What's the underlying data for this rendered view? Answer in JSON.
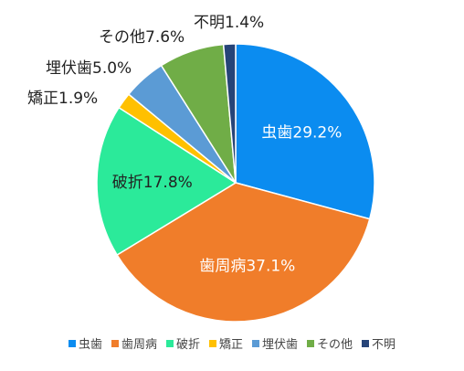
{
  "chart_data": {
    "type": "pie",
    "title": "",
    "start_angle_deg": 0,
    "direction": "clockwise",
    "legend_position": "bottom",
    "slices": [
      {
        "name": "虫歯",
        "value": 29.2,
        "label": "虫歯29.2%",
        "color": "#0B8CF0",
        "label_inside": true
      },
      {
        "name": "歯周病",
        "value": 37.1,
        "label": "歯周病37.1%",
        "color": "#F07D2A",
        "label_inside": true
      },
      {
        "name": "破折",
        "value": 17.8,
        "label": "破折17.8%",
        "color": "#2BEA9A",
        "label_inside": true
      },
      {
        "name": "矯正",
        "value": 1.9,
        "label": "矯正1.9%",
        "color": "#FFC000",
        "label_inside": false
      },
      {
        "name": "埋伏歯",
        "value": 5.0,
        "label": "埋伏歯5.0%",
        "color": "#5B9BD5",
        "label_inside": false
      },
      {
        "name": "その他",
        "value": 7.6,
        "label": "その他7.6%",
        "color": "#70AD47",
        "label_inside": false
      },
      {
        "name": "不明",
        "value": 1.4,
        "label": "不明1.4%",
        "color": "#264478",
        "label_inside": false
      }
    ]
  }
}
